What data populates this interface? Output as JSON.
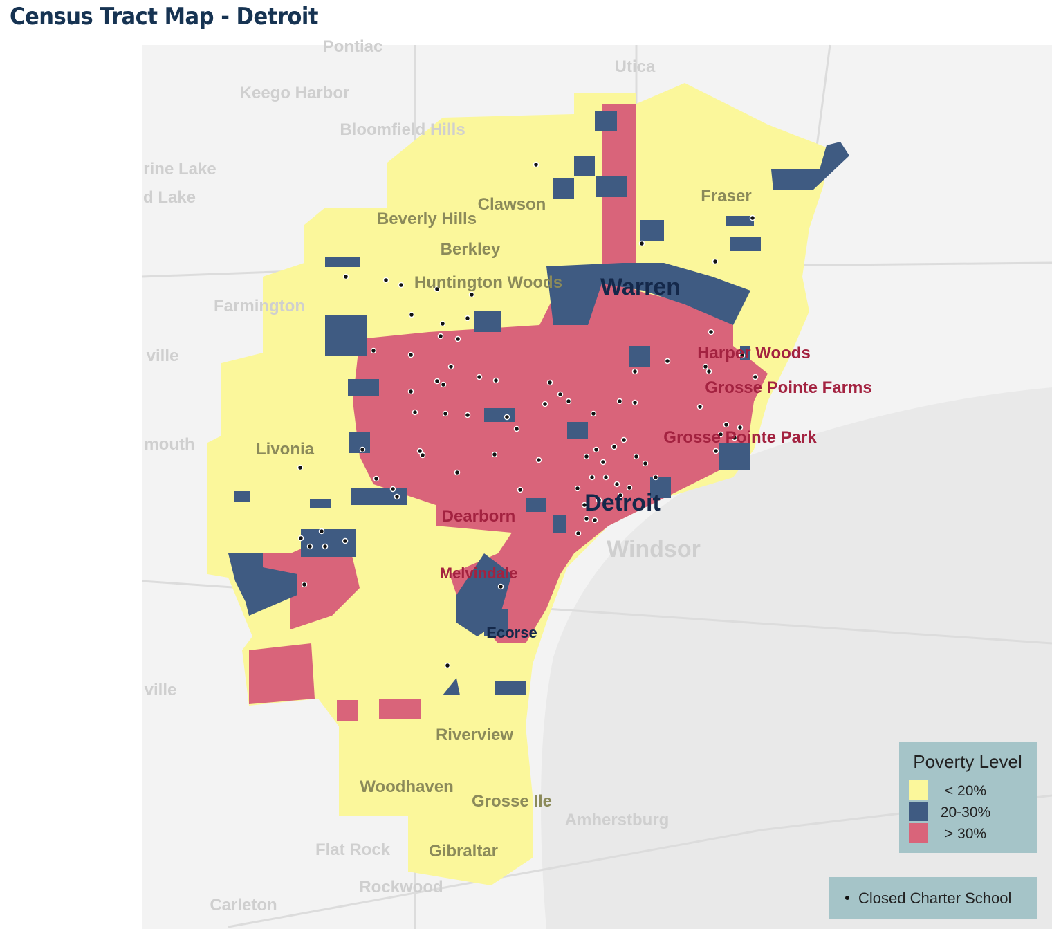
{
  "header": {
    "title": "Census Tract Map - Detroit"
  },
  "map": {
    "place_labels": [
      "Pontiac",
      "Utica",
      "Keego Harbor",
      "Bloomfield Hills",
      "rine Lake",
      "d Lake",
      "Clawson",
      "Fraser",
      "Beverly Hills",
      "Berkley",
      "Huntington Woods",
      "Warren",
      "Farmington",
      "ville",
      "Harper Woods",
      "Grosse Pointe Farms",
      "mouth",
      "Livonia",
      "Grosse Pointe Park",
      "Detroit",
      "Dearborn",
      "Windsor",
      "Melvindale",
      "ville",
      "Ecorse",
      "Riverview",
      "Woodhaven",
      "Grosse Ile",
      "Amherstburg",
      "Flat Rock",
      "Gibraltar",
      "Rockwood",
      "Carleton"
    ]
  },
  "legend": {
    "title": "Poverty Level",
    "items": [
      {
        "label": "< 20%",
        "color": "#fbf79b"
      },
      {
        "label": "20-30%",
        "color": "#3f5b82"
      },
      {
        "label": "> 30%",
        "color": "#d9647a"
      }
    ]
  },
  "school_legend": {
    "label": "Closed Charter School"
  }
}
